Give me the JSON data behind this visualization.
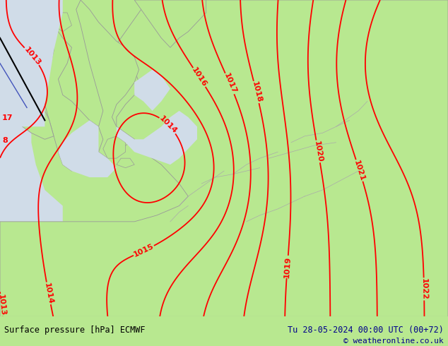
{
  "title_left": "Surface pressure [hPa] ECMWF",
  "title_right": "Tu 28-05-2024 00:00 UTC (00+72)",
  "copyright": "© weatheronline.co.uk",
  "bg_land_color": "#b8e890",
  "bg_sea_color": "#d0dce8",
  "coast_color": "#999999",
  "border_color": "#aaaaaa",
  "isobar_color": "#ff0000",
  "isobar_linewidth": 1.3,
  "label_fontsize": 8,
  "bottom_bar_color": "#90c860",
  "text_color_left": "#000000",
  "text_color_right": "#00008b",
  "copyright_color": "#00008b",
  "figsize": [
    6.34,
    4.9
  ],
  "dpi": 100,
  "pressure_levels": [
    1013,
    1014,
    1015,
    1016,
    1017,
    1018,
    1019,
    1020,
    1021,
    1022
  ]
}
